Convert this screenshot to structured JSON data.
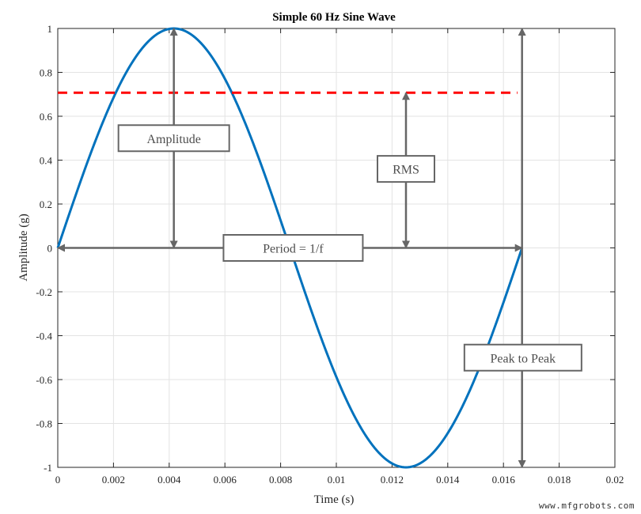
{
  "chart_data": {
    "type": "line",
    "title": "Simple 60 Hz Sine Wave",
    "xlabel": "Time (s)",
    "ylabel": "Amplitude (g)",
    "xlim": [
      0,
      0.02
    ],
    "ylim": [
      -1,
      1
    ],
    "grid": true,
    "x_ticks": [
      0,
      0.002,
      0.004,
      0.006,
      0.008,
      0.01,
      0.012,
      0.014,
      0.016,
      0.018,
      0.02
    ],
    "x_tick_labels": [
      "0",
      "0.002",
      "0.004",
      "0.006",
      "0.008",
      "0.01",
      "0.012",
      "0.014",
      "0.016",
      "0.018",
      "0.02"
    ],
    "y_ticks": [
      1,
      0.8,
      0.6,
      0.4,
      0.2,
      0,
      -0.2,
      -0.4,
      -0.6,
      -0.8,
      -1
    ],
    "y_tick_labels": [
      "1",
      "0.8",
      "0.6",
      "0.4",
      "0.2",
      "0",
      "-0.2",
      "-0.4",
      "-0.6",
      "-0.8",
      "-1"
    ],
    "series": [
      {
        "name": "sine",
        "frequency_hz": 60,
        "amplitude": 1,
        "x_start": 0,
        "x_end": 0.016667,
        "color": "#0072BD"
      },
      {
        "name": "RMS level",
        "y": 0.707,
        "x_start": 0,
        "x_end": 0.0165,
        "style": "dashed",
        "color": "#FF0000"
      }
    ],
    "annotations": [
      {
        "name": "amplitude",
        "label": "Amplitude",
        "arrow": "double",
        "from": [
          0.004167,
          0
        ],
        "to": [
          0.004167,
          1
        ],
        "label_at": [
          0.004167,
          0.5
        ]
      },
      {
        "name": "rms",
        "label": "RMS",
        "arrow": "double",
        "from": [
          0.0125,
          0
        ],
        "to": [
          0.0125,
          0.707
        ],
        "label_at": [
          0.0125,
          0.36
        ]
      },
      {
        "name": "period",
        "label": "Period = 1/f",
        "arrow": "double",
        "from": [
          0,
          0
        ],
        "to": [
          0.016667,
          0
        ],
        "label_at": [
          0.00845,
          0
        ]
      },
      {
        "name": "peak-to-peak",
        "label": "Peak to Peak",
        "arrow": "double",
        "from": [
          0.016667,
          -1
        ],
        "to": [
          0.016667,
          1
        ],
        "label_at": [
          0.0167,
          -0.5
        ]
      }
    ],
    "colors": {
      "line": "#0072BD",
      "rms": "#FF0000",
      "annotation": "#666666",
      "grid": "#e3e3e3",
      "axes": "#262626"
    }
  },
  "watermark": "www.mfgrobots.com"
}
